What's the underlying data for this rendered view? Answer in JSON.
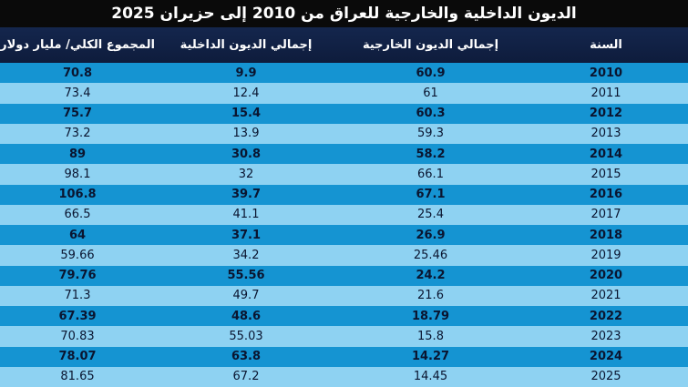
{
  "title": "الديون الداخلية والخارجية للعراق من 2010 إلى حزيران 2025",
  "chart_data": {
    "type": "table",
    "columns": [
      "السنة",
      "إجمالي الديون الخارجية",
      "إجمالي الديون الداخلية",
      "المجموع الكلي/ مليار دولار"
    ],
    "rows": [
      {
        "year": "2010",
        "external": "60.9",
        "domestic": "9.9",
        "total": "70.8"
      },
      {
        "year": "2011",
        "external": "61",
        "domestic": "12.4",
        "total": "73.4"
      },
      {
        "year": "2012",
        "external": "60.3",
        "domestic": "15.4",
        "total": "75.7"
      },
      {
        "year": "2013",
        "external": "59.3",
        "domestic": "13.9",
        "total": "73.2"
      },
      {
        "year": "2014",
        "external": "58.2",
        "domestic": "30.8",
        "total": "89"
      },
      {
        "year": "2015",
        "external": "66.1",
        "domestic": "32",
        "total": "98.1"
      },
      {
        "year": "2016",
        "external": "67.1",
        "domestic": "39.7",
        "total": "106.8"
      },
      {
        "year": "2017",
        "external": "25.4",
        "domestic": "41.1",
        "total": "66.5"
      },
      {
        "year": "2018",
        "external": "26.9",
        "domestic": "37.1",
        "total": "64"
      },
      {
        "year": "2019",
        "external": "25.46",
        "domestic": "34.2",
        "total": "59.66"
      },
      {
        "year": "2020",
        "external": "24.2",
        "domestic": "55.56",
        "total": "79.76"
      },
      {
        "year": "2021",
        "external": "21.6",
        "domestic": "49.7",
        "total": "71.3"
      },
      {
        "year": "2022",
        "external": "18.79",
        "domestic": "48.6",
        "total": "67.39"
      },
      {
        "year": "2023",
        "external": "15.8",
        "domestic": "55.03",
        "total": "70.83"
      },
      {
        "year": "2024",
        "external": "14.27",
        "domestic": "63.8",
        "total": "78.07"
      },
      {
        "year": "2025",
        "external": "14.45",
        "domestic": "67.2",
        "total": "81.65"
      }
    ]
  },
  "colors": {
    "title_bg": "#0a0a0a",
    "header_bg": "#14264d",
    "row_dark": "#1594d2",
    "row_light": "#8ed2f2",
    "cell_text": "#0a1530"
  }
}
